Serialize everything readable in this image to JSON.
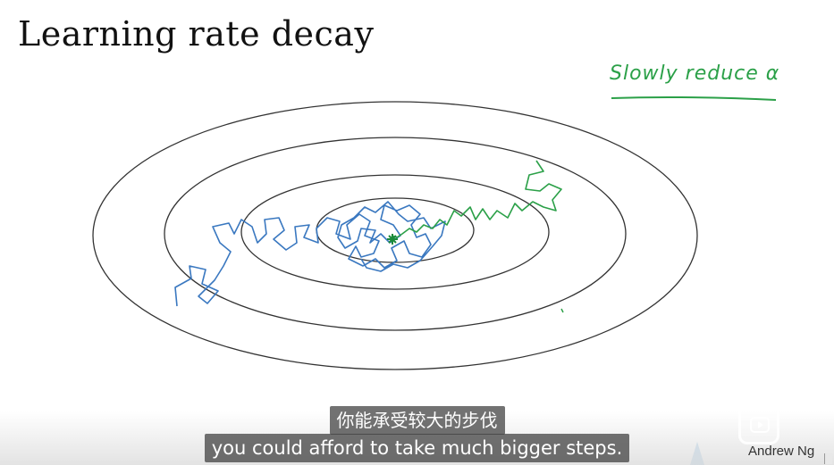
{
  "slide": {
    "title": "Learning rate decay",
    "annotation": "Slowly reduce α",
    "author": "Andrew Ng"
  },
  "subtitles": {
    "chinese": "你能承受较大的步伐",
    "english": "you could afford to take much bigger steps."
  },
  "colors": {
    "contour": "#333333",
    "blue_path": "#3a78c0",
    "green_path": "#2ba048",
    "annotation": "#2ba048"
  },
  "icons": {
    "player_logo": "tv-play-icon"
  }
}
